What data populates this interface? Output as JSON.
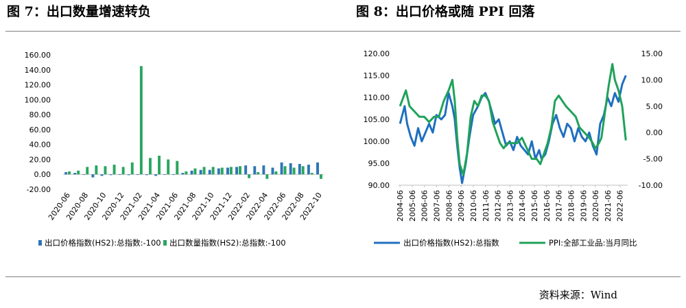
{
  "titles": {
    "left": "图 7：出口数量增速转负",
    "right": "图 8：出口价格或随 PPI 回落"
  },
  "source": "资料来源：Wind",
  "chart_data": [
    {
      "type": "bar",
      "y_ticks": [
        "160.00",
        "140.00",
        "120.00",
        "100.00",
        "80.00",
        "60.00",
        "40.00",
        "20.00",
        "0.00",
        "-20.00"
      ],
      "ylim": [
        -20,
        160
      ],
      "x_tick_labels": [
        "2020-06",
        "2020-08",
        "2020-10",
        "2020-12",
        "2021-02",
        "2021-04",
        "2021-06",
        "2021-08",
        "2021-10",
        "2021-12",
        "2022-02",
        "2022-04",
        "2022-06",
        "2022-08",
        "2022-10"
      ],
      "categories": [
        "2020-06",
        "2020-07",
        "2020-08",
        "2020-09",
        "2020-10",
        "2020-11",
        "2020-12",
        "2021-01",
        "2021-02",
        "2021-03",
        "2021-04",
        "2021-05",
        "2021-06",
        "2021-07",
        "2021-08",
        "2021-09",
        "2021-10",
        "2021-11",
        "2021-12",
        "2022-01",
        "2022-02",
        "2022-03",
        "2022-04",
        "2022-05",
        "2022-06",
        "2022-07",
        "2022-08",
        "2022-09",
        "2022-10"
      ],
      "series": [
        {
          "name": "出口价格指数(HS2):总指数:-100",
          "color": "#2e75b6",
          "values": [
            3,
            2,
            0,
            -4,
            -2,
            -1,
            0,
            -1,
            0,
            -1,
            -2,
            0,
            0,
            2,
            5,
            6,
            6,
            8,
            9,
            10,
            12,
            11,
            12,
            9,
            16,
            15,
            14,
            13,
            16
          ]
        },
        {
          "name": "出口数量指数(HS2):总指数:-100",
          "color": "#2aa65f",
          "values": [
            4,
            5,
            10,
            12,
            11,
            13,
            10,
            16,
            145,
            22,
            25,
            20,
            18,
            4,
            8,
            10,
            10,
            9,
            10,
            11,
            -5,
            3,
            -6,
            4,
            11,
            9,
            11,
            2,
            -6
          ]
        }
      ]
    },
    {
      "type": "line",
      "y_left_ticks": [
        "120.00",
        "115.00",
        "110.00",
        "105.00",
        "100.00",
        "95.00",
        "90.00"
      ],
      "y_left_lim": [
        90,
        120
      ],
      "y_right_ticks": [
        "15.00",
        "10.00",
        "5.00",
        "0.00",
        "-5.00",
        "-10.00"
      ],
      "y_right_lim": [
        -10,
        15
      ],
      "x_tick_labels": [
        "2004-06",
        "2005-06",
        "2006-06",
        "2007-06",
        "2008-06",
        "2009-06",
        "2010-06",
        "2011-06",
        "2012-06",
        "2013-06",
        "2014-06",
        "2015-06",
        "2016-06",
        "2017-06",
        "2018-06",
        "2019-06",
        "2020-06",
        "2021-06",
        "2022-06"
      ],
      "series": [
        {
          "name": "出口价格指数(HS2):总指数",
          "axis": "left",
          "color": "#1f6fbf",
          "x": [
            2004.42,
            2004.8,
            2005.0,
            2005.3,
            2005.6,
            2005.9,
            2006.2,
            2006.5,
            2006.8,
            2007.1,
            2007.4,
            2007.8,
            2008.1,
            2008.4,
            2008.7,
            2008.9,
            2009.1,
            2009.3,
            2009.5,
            2009.8,
            2010.1,
            2010.4,
            2010.8,
            2011.1,
            2011.4,
            2011.7,
            2011.9,
            2012.2,
            2012.5,
            2012.8,
            2013.1,
            2013.4,
            2013.7,
            2014.0,
            2014.3,
            2014.6,
            2014.9,
            2015.2,
            2015.5,
            2015.8,
            2016.0,
            2016.3,
            2016.6,
            2016.9,
            2017.2,
            2017.5,
            2017.8,
            2018.1,
            2018.4,
            2018.7,
            2019.0,
            2019.3,
            2019.6,
            2019.9,
            2020.2,
            2020.5,
            2020.8,
            2021.1,
            2021.4,
            2021.7,
            2022.0,
            2022.3,
            2022.6,
            2022.9
          ],
          "y": [
            104,
            108,
            104,
            101,
            99,
            103,
            100,
            102,
            104,
            102,
            106,
            105,
            106,
            111,
            108,
            105,
            99,
            94,
            90.5,
            95,
            101,
            106,
            108,
            110,
            111,
            109,
            107,
            104,
            105,
            102,
            99,
            100,
            98,
            101,
            99,
            98,
            97,
            100,
            96,
            98,
            96,
            97,
            100,
            104,
            106,
            103,
            101,
            104,
            103,
            100,
            103,
            101,
            100,
            102,
            99,
            97,
            104,
            106,
            110,
            108,
            111,
            109,
            113,
            115
          ]
        },
        {
          "name": "PPI:全部工业品:当月同比",
          "axis": "right",
          "color": "#1fa25a",
          "x": [
            2004.42,
            2004.9,
            2005.2,
            2005.6,
            2006.0,
            2006.4,
            2006.8,
            2007.2,
            2007.6,
            2008.0,
            2008.4,
            2008.7,
            2008.9,
            2009.1,
            2009.3,
            2009.6,
            2009.9,
            2010.2,
            2010.5,
            2010.8,
            2011.1,
            2011.4,
            2011.7,
            2012.0,
            2012.3,
            2012.6,
            2012.9,
            2013.2,
            2013.6,
            2014.0,
            2014.4,
            2014.8,
            2015.2,
            2015.6,
            2015.9,
            2016.2,
            2016.5,
            2016.8,
            2017.1,
            2017.4,
            2017.7,
            2018.0,
            2018.4,
            2018.8,
            2019.1,
            2019.5,
            2019.9,
            2020.2,
            2020.4,
            2020.7,
            2020.9,
            2021.2,
            2021.5,
            2021.8,
            2022.0,
            2022.3,
            2022.6,
            2022.9
          ],
          "y": [
            5,
            8,
            5,
            4,
            3,
            3,
            2,
            3,
            3,
            6,
            8,
            10,
            6,
            -1,
            -6,
            -8,
            -4,
            3,
            6,
            5,
            7,
            7,
            6,
            2,
            0,
            -2,
            -3,
            -2,
            -2,
            -2,
            -1,
            -3,
            -5,
            -5,
            -6,
            -4,
            -2,
            1,
            6,
            7,
            6,
            5,
            4,
            3,
            1,
            0,
            -1,
            -2,
            -3,
            -2,
            -1,
            4,
            9,
            13,
            10,
            8,
            5,
            -1.5
          ]
        }
      ]
    }
  ]
}
